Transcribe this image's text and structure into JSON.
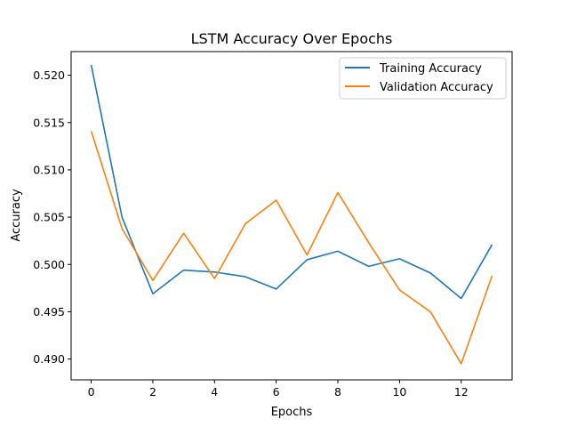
{
  "chart_data": {
    "type": "line",
    "title": "LSTM Accuracy Over Epochs",
    "xlabel": "Epochs",
    "ylabel": "Accuracy",
    "xlim": [
      -0.65,
      13.65
    ],
    "ylim": [
      0.4878,
      0.5225
    ],
    "xticks": [
      0,
      2,
      4,
      6,
      8,
      10,
      12
    ],
    "yticks": [
      0.49,
      0.495,
      0.5,
      0.505,
      0.51,
      0.515,
      0.52
    ],
    "ytick_labels": [
      "0.490",
      "0.495",
      "0.500",
      "0.505",
      "0.510",
      "0.515",
      "0.520"
    ],
    "grid": false,
    "legend_position": "top-right",
    "x": [
      0,
      1,
      2,
      3,
      4,
      5,
      6,
      7,
      8,
      9,
      10,
      11,
      12,
      13
    ],
    "series": [
      {
        "name": "Training Accuracy",
        "color": "#1f77b4",
        "values": [
          0.5211,
          0.505,
          0.4969,
          0.4994,
          0.4992,
          0.4987,
          0.4974,
          0.5005,
          0.5014,
          0.4998,
          0.5006,
          0.4991,
          0.4964,
          0.5021
        ]
      },
      {
        "name": "Validation Accuracy",
        "color": "#ff7f0e",
        "values": [
          0.5141,
          0.5038,
          0.4983,
          0.5033,
          0.4985,
          0.5043,
          0.5068,
          0.501,
          0.5076,
          0.5023,
          0.4973,
          0.495,
          0.4895,
          0.4988
        ]
      }
    ]
  }
}
